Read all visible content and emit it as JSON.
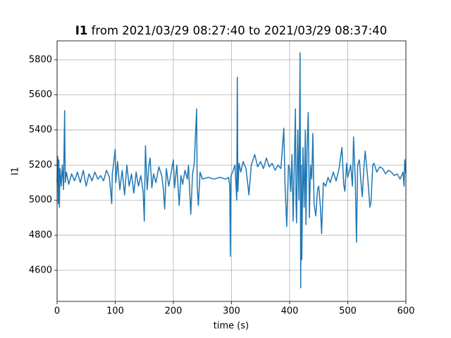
{
  "chart_data": {
    "type": "line",
    "title": {
      "bold": "I1",
      "text": "from 2021/03/29 08:27:40 to 2021/03/29 08:37:40"
    },
    "xlabel": "time (s)",
    "ylabel": "I1",
    "xlim": [
      0,
      600
    ],
    "ylim": [
      4423,
      5908
    ],
    "xticks": [
      0,
      100,
      200,
      300,
      400,
      500,
      600
    ],
    "yticks": [
      4600,
      4800,
      5000,
      5200,
      5400,
      5600,
      5800
    ],
    "grid": true,
    "series": [
      {
        "color": "#1f77b4",
        "x": [
          0,
          1,
          2,
          3,
          4,
          5,
          7,
          9,
          11,
          13,
          14,
          16,
          20,
          25,
          30,
          35,
          40,
          45,
          50,
          55,
          60,
          65,
          70,
          75,
          80,
          85,
          90,
          94,
          95,
          97,
          100,
          101,
          104,
          108,
          112,
          116,
          120,
          124,
          128,
          132,
          136,
          140,
          144,
          148,
          150,
          151,
          152,
          155,
          158,
          160,
          163,
          166,
          170,
          175,
          180,
          183,
          185,
          188,
          192,
          196,
          200,
          202,
          206,
          210,
          213,
          216,
          220,
          224,
          226,
          230,
          233,
          236,
          240,
          241,
          243,
          246,
          250,
          260,
          270,
          280,
          290,
          295,
          297,
          298,
          299,
          302,
          306,
          309,
          310,
          311,
          313,
          316,
          320,
          325,
          330,
          334,
          340,
          345,
          350,
          355,
          360,
          365,
          370,
          375,
          380,
          385,
          390,
          392,
          395,
          398,
          400,
          402,
          404,
          406,
          408,
          410,
          411,
          412,
          414,
          416,
          418,
          419,
          420,
          421,
          423,
          425,
          427,
          428,
          430,
          432,
          434,
          436,
          438,
          440,
          442,
          445,
          448,
          450,
          453,
          455,
          458,
          462,
          466,
          470,
          475,
          480,
          485,
          490,
          493,
          495,
          498,
          500,
          505,
          508,
          510,
          513,
          515,
          517,
          520,
          523,
          525,
          528,
          530,
          535,
          538,
          540,
          543,
          545,
          550,
          555,
          560,
          565,
          570,
          575,
          580,
          585,
          590,
          595,
          597,
          598,
          600
        ],
        "values": [
          5100,
          5250,
          4980,
          5230,
          4960,
          5180,
          5080,
          5200,
          5060,
          5510,
          5100,
          5160,
          5090,
          5150,
          5110,
          5160,
          5100,
          5170,
          5080,
          5150,
          5110,
          5160,
          5120,
          5140,
          5110,
          5170,
          5130,
          4980,
          5150,
          5200,
          5290,
          5100,
          5220,
          5060,
          5170,
          5030,
          5200,
          5080,
          5150,
          5040,
          5160,
          5080,
          5140,
          5050,
          4880,
          5100,
          5310,
          5060,
          5200,
          5240,
          5070,
          5150,
          5100,
          5190,
          5140,
          5060,
          4950,
          5180,
          5080,
          5150,
          5230,
          5070,
          5200,
          4970,
          5140,
          5090,
          5170,
          5120,
          5200,
          4920,
          5150,
          5210,
          5520,
          5080,
          4970,
          5160,
          5120,
          5130,
          5120,
          5130,
          5120,
          5130,
          5080,
          4680,
          5140,
          5160,
          5200,
          5000,
          5700,
          5050,
          5210,
          5160,
          5220,
          5180,
          5030,
          5200,
          5260,
          5190,
          5220,
          5180,
          5240,
          5190,
          5210,
          5170,
          5200,
          5180,
          5410,
          5100,
          4850,
          5200,
          5180,
          5050,
          5260,
          4880,
          5200,
          5520,
          4980,
          4870,
          5400,
          5000,
          5840,
          4500,
          5200,
          4660,
          5300,
          4960,
          5400,
          4860,
          5300,
          5500,
          4900,
          5200,
          5120,
          5380,
          4980,
          4910,
          5060,
          5080,
          4960,
          4810,
          5100,
          5080,
          5130,
          5100,
          5160,
          5110,
          5180,
          5300,
          5090,
          5050,
          5210,
          5130,
          5200,
          5080,
          5360,
          5110,
          4760,
          5200,
          5230,
          5090,
          5020,
          5200,
          5280,
          5100,
          4960,
          4990,
          5200,
          5210,
          5160,
          5190,
          5180,
          5150,
          5170,
          5160,
          5140,
          5150,
          5120,
          5160,
          5080,
          5230,
          5150
        ]
      }
    ]
  }
}
